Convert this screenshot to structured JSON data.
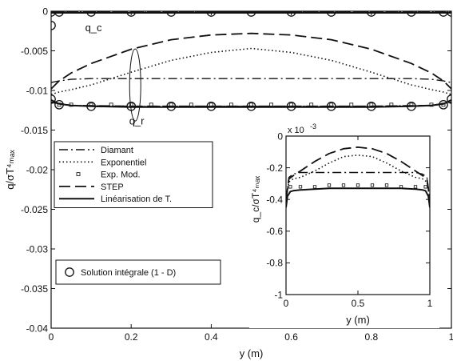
{
  "chart_data": [
    {
      "type": "line",
      "xlabel": "y (m)",
      "ylabel": "q/σT⁴ₘₐₓ",
      "xlim": [
        0,
        1
      ],
      "ylim": [
        -0.04,
        0
      ],
      "xticks": [
        "0",
        "0.2",
        "0.4",
        "0.6",
        "0.8",
        "1"
      ],
      "yticks": [
        "0",
        "-0.005",
        "-0.01",
        "-0.015",
        "-0.02",
        "-0.025",
        "-0.03",
        "-0.035",
        "-0.04"
      ],
      "annotations": [
        "q_c",
        "q_r"
      ],
      "legend_position": "middle-left",
      "series": [
        {
          "name": "Diamant",
          "style": "dashdot",
          "groups": [
            {
              "x": [
                0,
                0.02,
                0.05,
                0.1,
                0.2,
                0.3,
                0.4,
                0.5,
                0.6,
                0.7,
                0.8,
                0.9,
                0.95,
                0.98,
                1
              ],
              "y": [
                -0.009,
                -0.0088,
                -0.0086,
                -0.0085,
                -0.0085,
                -0.0085,
                -0.0085,
                -0.0085,
                -0.0085,
                -0.0085,
                -0.0085,
                -0.0085,
                -0.0086,
                -0.0088,
                -0.009
              ]
            },
            {
              "x": [
                0,
                0.5,
                1
              ],
              "y": [
                -0.0001,
                -0.0001,
                -0.0001
              ]
            },
            {
              "x": [
                0,
                0.05,
                0.2,
                0.5,
                0.8,
                0.95,
                1
              ],
              "y": [
                -0.0115,
                -0.0119,
                -0.012,
                -0.012,
                -0.012,
                -0.0119,
                -0.0115
              ]
            }
          ]
        },
        {
          "name": "Exponentiel",
          "style": "dotted",
          "groups": [
            {
              "x": [
                0,
                0.02,
                0.05,
                0.1,
                0.2,
                0.3,
                0.4,
                0.5,
                0.6,
                0.7,
                0.8,
                0.9,
                0.95,
                0.98,
                1
              ],
              "y": [
                -0.0105,
                -0.0102,
                -0.0099,
                -0.0093,
                -0.0077,
                -0.0062,
                -0.0052,
                -0.0047,
                -0.0052,
                -0.0062,
                -0.0077,
                -0.0093,
                -0.0099,
                -0.0102,
                -0.0105
              ]
            },
            {
              "x": [
                0,
                0.5,
                1
              ],
              "y": [
                -0.0001,
                -0.0001,
                -0.0001
              ]
            },
            {
              "x": [
                0,
                0.05,
                0.2,
                0.5,
                0.8,
                0.95,
                1
              ],
              "y": [
                -0.0115,
                -0.0119,
                -0.012,
                -0.012,
                -0.012,
                -0.0119,
                -0.0115
              ]
            }
          ]
        },
        {
          "name": "Exp. Mod.",
          "style": "squares",
          "groups": [
            {
              "x": [
                0.02,
                0.05,
                0.1,
                0.15,
                0.2,
                0.25,
                0.3,
                0.35,
                0.4,
                0.45,
                0.5,
                0.55,
                0.6,
                0.65,
                0.7,
                0.75,
                0.8,
                0.85,
                0.9,
                0.95,
                0.98
              ],
              "y": [
                -0.0118,
                -0.0118,
                -0.0118,
                -0.0118,
                -0.0118,
                -0.0118,
                -0.0118,
                -0.0118,
                -0.0118,
                -0.0118,
                -0.0118,
                -0.0118,
                -0.0118,
                -0.0118,
                -0.0118,
                -0.0118,
                -0.0118,
                -0.0118,
                -0.0118,
                -0.0118,
                -0.0118
              ]
            }
          ]
        },
        {
          "name": "STEP",
          "style": "dashed",
          "groups": [
            {
              "x": [
                0,
                0.02,
                0.05,
                0.1,
                0.2,
                0.3,
                0.4,
                0.5,
                0.6,
                0.7,
                0.8,
                0.9,
                0.95,
                0.98,
                1
              ],
              "y": [
                -0.0098,
                -0.0088,
                -0.0078,
                -0.0066,
                -0.0048,
                -0.0036,
                -0.003,
                -0.0028,
                -0.003,
                -0.0036,
                -0.0048,
                -0.0066,
                -0.0078,
                -0.0088,
                -0.0098
              ]
            },
            {
              "x": [
                0,
                0.5,
                1
              ],
              "y": [
                -0.0001,
                -0.0001,
                -0.0001
              ]
            },
            {
              "x": [
                0,
                0.05,
                0.2,
                0.5,
                0.8,
                0.95,
                1
              ],
              "y": [
                -0.0115,
                -0.0119,
                -0.012,
                -0.012,
                -0.012,
                -0.0119,
                -0.0115
              ]
            }
          ]
        },
        {
          "name": "Linéarisation de T.",
          "style": "solid",
          "groups": [
            {
              "x": [
                0,
                0.5,
                1
              ],
              "y": [
                -0.0002,
                -0.0002,
                -0.0002
              ]
            },
            {
              "x": [
                0,
                0.02,
                0.05,
                0.1,
                0.2,
                0.3,
                0.4,
                0.5,
                0.6,
                0.7,
                0.8,
                0.9,
                0.95,
                0.98,
                1
              ],
              "y": [
                -0.0112,
                -0.0117,
                -0.0119,
                -0.012,
                -0.0121,
                -0.0121,
                -0.0121,
                -0.0121,
                -0.0121,
                -0.0121,
                -0.0121,
                -0.012,
                -0.0119,
                -0.0117,
                -0.0112
              ]
            }
          ]
        },
        {
          "name": "Solution intégrale (1 - D)",
          "style": "circles",
          "groups": [
            {
              "x": [
                0,
                0.02,
                0.1,
                0.2,
                0.3,
                0.4,
                0.5,
                0.6,
                0.7,
                0.8,
                0.9,
                0.98,
                1
              ],
              "y": [
                -0.0001,
                -0.0001,
                -0.0001,
                -0.0001,
                -0.0001,
                -0.0001,
                -0.0001,
                -0.0001,
                -0.0001,
                -0.0001,
                -0.0001,
                -0.0001,
                -0.0001
              ]
            },
            {
              "x": [
                0,
                0.02,
                0.1,
                0.2,
                0.3,
                0.4,
                0.5,
                0.6,
                0.7,
                0.8,
                0.9,
                0.98,
                1
              ],
              "y": [
                -0.0111,
                -0.0118,
                -0.012,
                -0.012,
                -0.012,
                -0.012,
                -0.012,
                -0.012,
                -0.012,
                -0.012,
                -0.012,
                -0.0118,
                -0.0111
              ]
            },
            {
              "x": [
                0
              ],
              "y": [
                -0.0018
              ]
            }
          ]
        }
      ]
    },
    {
      "type": "line",
      "xlabel": "y (m)",
      "ylabel": "q_c/σT⁴ₘₐₓ",
      "exponent_label": "x 10",
      "exponent_power": "-3",
      "xlim": [
        0,
        1
      ],
      "ylim": [
        -1,
        0
      ],
      "xticks": [
        "0",
        "0.5",
        "1"
      ],
      "yticks": [
        "0",
        "-0.2",
        "-0.4",
        "-0.6",
        "-0.8",
        "-1"
      ],
      "series": [
        {
          "name": "Diamant",
          "style": "dashdot",
          "x": [
            0,
            0.02,
            0.05,
            0.1,
            0.3,
            0.5,
            0.7,
            0.9,
            0.95,
            0.98,
            1
          ],
          "y": [
            -0.4,
            -0.26,
            -0.24,
            -0.23,
            -0.23,
            -0.23,
            -0.23,
            -0.23,
            -0.24,
            -0.26,
            -0.4
          ]
        },
        {
          "name": "Exponentiel",
          "style": "dotted",
          "x": [
            0,
            0.02,
            0.05,
            0.1,
            0.2,
            0.3,
            0.4,
            0.5,
            0.6,
            0.7,
            0.8,
            0.9,
            0.95,
            0.98,
            1
          ],
          "y": [
            -0.4,
            -0.29,
            -0.27,
            -0.26,
            -0.22,
            -0.17,
            -0.13,
            -0.12,
            -0.13,
            -0.17,
            -0.22,
            -0.26,
            -0.27,
            -0.29,
            -0.4
          ]
        },
        {
          "name": "Exp. Mod.",
          "style": "squares",
          "x": [
            0.03,
            0.1,
            0.2,
            0.3,
            0.4,
            0.5,
            0.6,
            0.7,
            0.8,
            0.9,
            0.97
          ],
          "y": [
            -0.32,
            -0.32,
            -0.32,
            -0.31,
            -0.31,
            -0.31,
            -0.31,
            -0.31,
            -0.32,
            -0.32,
            -0.32
          ]
        },
        {
          "name": "STEP",
          "style": "dashed",
          "x": [
            0,
            0.02,
            0.05,
            0.1,
            0.2,
            0.3,
            0.4,
            0.5,
            0.6,
            0.7,
            0.8,
            0.9,
            0.95,
            0.98,
            1
          ],
          "y": [
            -0.4,
            -0.27,
            -0.25,
            -0.22,
            -0.16,
            -0.11,
            -0.08,
            -0.07,
            -0.08,
            -0.11,
            -0.16,
            -0.22,
            -0.25,
            -0.27,
            -0.4
          ]
        },
        {
          "name": "Linéarisation de T.",
          "style": "solid",
          "x": [
            0,
            0.01,
            0.03,
            0.05,
            0.1,
            0.2,
            0.3,
            0.4,
            0.5,
            0.6,
            0.7,
            0.8,
            0.9,
            0.95,
            0.97,
            0.99,
            1
          ],
          "y": [
            -0.45,
            -0.38,
            -0.35,
            -0.345,
            -0.34,
            -0.335,
            -0.33,
            -0.33,
            -0.33,
            -0.33,
            -0.33,
            -0.33,
            -0.335,
            -0.34,
            -0.345,
            -0.38,
            -0.45
          ]
        }
      ]
    }
  ]
}
